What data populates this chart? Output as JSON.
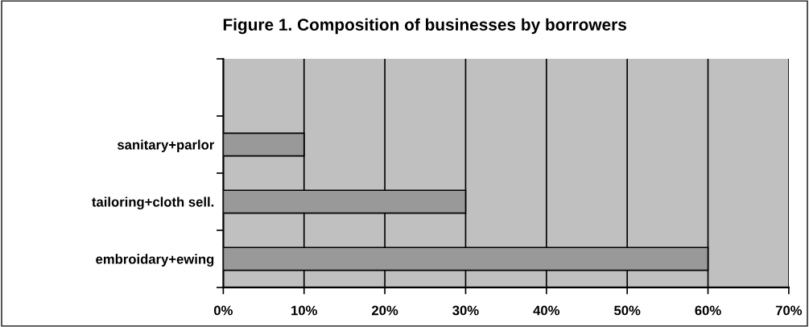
{
  "chart_data": {
    "type": "bar",
    "orientation": "horizontal",
    "title": "Figure 1. Composition of businesses by borrowers",
    "categories": [
      null,
      "sanitary+parlor",
      "tailoring+cloth sell.",
      "embroidary+ewing"
    ],
    "values": [
      null,
      10,
      30,
      60
    ],
    "color": "#999999",
    "xlim": [
      0,
      70
    ],
    "xticks": [
      {
        "value": 0,
        "label": "0%"
      },
      {
        "value": 10,
        "label": "10%"
      },
      {
        "value": 20,
        "label": "20%"
      },
      {
        "value": 30,
        "label": "30%"
      },
      {
        "value": 40,
        "label": "40%"
      },
      {
        "value": 50,
        "label": "50%"
      },
      {
        "value": 60,
        "label": "60%"
      },
      {
        "value": 70,
        "label": "70%"
      }
    ],
    "grid": "x",
    "legend": false
  }
}
